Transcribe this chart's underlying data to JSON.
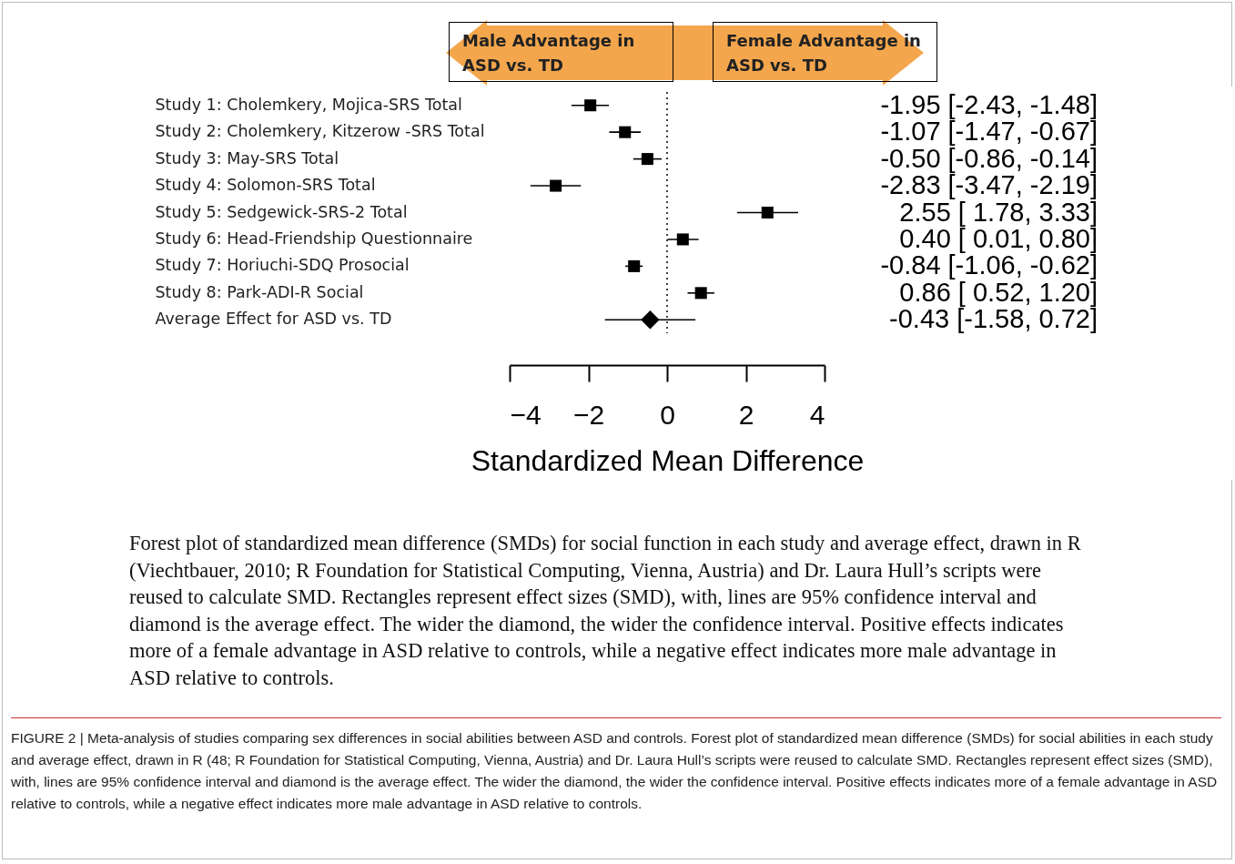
{
  "chart_data": {
    "type": "scatter",
    "orientation": "horizontal",
    "categories": [
      "Study 1: Cholemkery, Mojica-SRS Total",
      "Study 2: Cholemkery, Kitzerow -SRS Total",
      "Study 3: May-SRS Total",
      "Study 4: Solomon-SRS Total",
      "Study 5: Sedgewick-SRS-2 Total",
      "Study 6: Head-Friendship Questionnaire",
      "Study 7: Horiuchi-SDQ Prosocial",
      "Study 8: Park-ADI-R Social",
      "Average Effect for ASD vs. TD"
    ],
    "series": [
      {
        "color": "#000000",
        "marker": "square",
        "values": [
          -1.95,
          -1.07,
          -0.5,
          -2.83,
          2.55,
          0.4,
          -0.84,
          0.86,
          null
        ],
        "errors": [
          [
            -2.43,
            -1.48
          ],
          [
            -1.47,
            -0.67
          ],
          [
            -0.86,
            -0.14
          ],
          [
            -3.47,
            -2.19
          ],
          [
            1.78,
            3.33
          ],
          [
            0.01,
            0.8
          ],
          [
            -1.06,
            -0.62
          ],
          [
            0.52,
            1.2
          ],
          null
        ],
        "value_labels": [
          "-1.95 [-2.43, -1.48]",
          "-1.07 [-1.47, -0.67]",
          "-0.50 [-0.86, -0.14]",
          "-2.83 [-3.47, -2.19]",
          "2.55 [ 1.78,  3.33]",
          "0.40 [ 0.01,  0.80]",
          "-0.84 [-1.06, -0.62]",
          "0.86 [ 0.52,  1.20]",
          null
        ]
      },
      {
        "color": "#000000",
        "marker": "diamond",
        "values": [
          null,
          null,
          null,
          null,
          null,
          null,
          null,
          null,
          -0.43
        ],
        "errors": [
          null,
          null,
          null,
          null,
          null,
          null,
          null,
          null,
          [
            -1.58,
            0.72
          ]
        ]
      }
    ],
    "xlim": [
      -4,
      4
    ],
    "xticks": [
      -4,
      -2,
      0,
      2,
      4
    ],
    "xlabel": "Standardized Mean Difference",
    "grid": false,
    "legend": false,
    "ref_lines": [
      {
        "axis": "x",
        "value": 0,
        "line_style": "dotted",
        "color": "#000000"
      }
    ],
    "annotations": [
      "Male Advantage in ASD vs. TD",
      "Female Advantage in ASD vs. TD",
      "-0.43 [-1.58, 0.72]",
      "Forest plot of standardized mean difference (SMDs) for social function in each study and average effect, drawn in R (Viechtbauer, 2010; R Foundation for Statistical Computing, Vienna, Austria) and Dr. Laura Hull’s scripts were reused to calculate SMD. Rectangles represent effect sizes (SMD), with, lines are 95% confidence interval and diamond is the average effect. The wider the diamond, the wider the confidence interval. Positive effects indicates more of a female advantage in ASD relative to controls, while a negative effect indicates more male advantage in ASD relative to controls.",
      "FIGURE 2 | Meta-analysis of studies comparing sex differences in social abilities between ASD and controls. Forest plot of standardized mean difference (SMDs) for social abilities in each study and average effect, drawn in R (48; R Foundation for Statistical Computing, Vienna, Austria) and Dr. Laura Hull’s scripts were reused to calculate SMD. Rectangles represent effect sizes (SMD), with, lines are 95% confidence interval and diamond is the average effect. The wider the diamond, the wider the confidence interval. Positive effects indicates more of a female advantage in ASD relative to controls, while a negative effect indicates more male advantage in ASD relative to controls."
    ]
  }
}
